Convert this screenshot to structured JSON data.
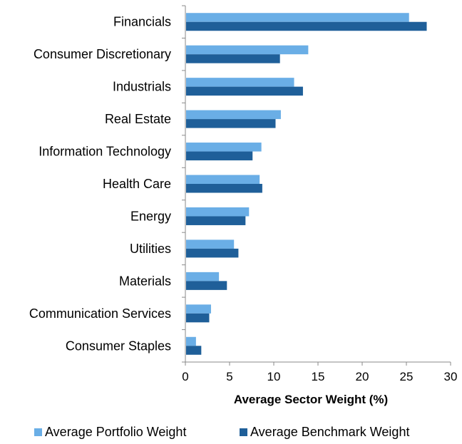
{
  "chart_data": {
    "type": "bar",
    "orientation": "horizontal",
    "categories": [
      "Financials",
      "Consumer Discretionary",
      "Industrials",
      "Real Estate",
      "Information Technology",
      "Health Care",
      "Energy",
      "Utilities",
      "Materials",
      "Communication Services",
      "Consumer Staples"
    ],
    "series": [
      {
        "name": "Average Portfolio Weight",
        "color": "#6aaee6",
        "values": [
          25.3,
          13.9,
          12.3,
          10.8,
          8.6,
          8.4,
          7.2,
          5.5,
          3.8,
          2.9,
          1.2
        ]
      },
      {
        "name": "Average Benchmark Weight",
        "color": "#1f5f99",
        "values": [
          27.3,
          10.7,
          13.3,
          10.2,
          7.6,
          8.7,
          6.8,
          6.0,
          4.7,
          2.7,
          1.8
        ]
      }
    ],
    "xlabel": "Average Sector Weight (%)",
    "ylabel": "",
    "xlim": [
      0,
      30
    ],
    "xticks": [
      "0",
      "5",
      "10",
      "15",
      "20",
      "25",
      "30"
    ],
    "grid": false,
    "legend_position": "bottom"
  }
}
